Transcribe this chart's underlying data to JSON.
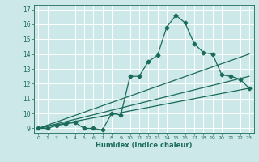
{
  "xlabel": "Humidex (Indice chaleur)",
  "bg_color": "#cce8e8",
  "grid_color": "#ffffff",
  "line_color": "#1a6b5a",
  "xlim": [
    -0.5,
    23.5
  ],
  "ylim": [
    8.7,
    17.3
  ],
  "yticks": [
    9,
    10,
    11,
    12,
    13,
    14,
    15,
    16,
    17
  ],
  "xticks": [
    0,
    1,
    2,
    3,
    4,
    5,
    6,
    7,
    8,
    9,
    10,
    11,
    12,
    13,
    14,
    15,
    16,
    17,
    18,
    19,
    20,
    21,
    22,
    23
  ],
  "curve1_x": [
    0,
    1,
    2,
    3,
    4,
    5,
    6,
    7,
    8,
    9,
    10,
    11,
    12,
    13,
    14,
    15,
    16,
    17,
    18,
    19,
    20,
    21,
    22,
    23
  ],
  "curve1_y": [
    9.0,
    9.0,
    9.2,
    9.3,
    9.4,
    9.0,
    9.0,
    8.9,
    10.0,
    9.9,
    12.5,
    12.5,
    13.5,
    13.9,
    15.8,
    16.6,
    16.1,
    14.7,
    14.1,
    14.0,
    12.6,
    12.5,
    12.3,
    11.7
  ],
  "line1_x": [
    0,
    23
  ],
  "line1_y": [
    9.0,
    14.0
  ],
  "line2_x": [
    0,
    23
  ],
  "line2_y": [
    9.0,
    12.5
  ],
  "line3_x": [
    0,
    23
  ],
  "line3_y": [
    9.0,
    11.7
  ]
}
